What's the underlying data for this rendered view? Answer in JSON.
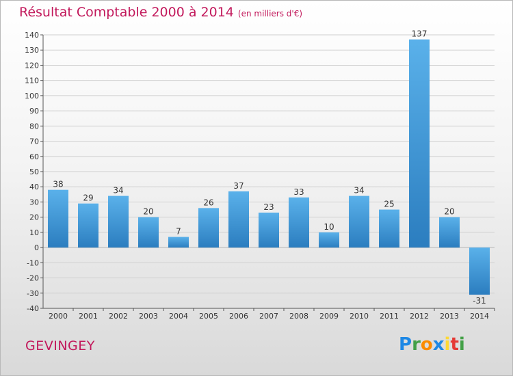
{
  "chart_data": {
    "type": "bar",
    "title": "Résultat Comptable 2000 à 2014",
    "subtitle": "(en milliers d'€)",
    "xlabel": "",
    "ylabel": "",
    "categories": [
      "2000",
      "2001",
      "2002",
      "2003",
      "2004",
      "2005",
      "2006",
      "2007",
      "2008",
      "2009",
      "2010",
      "2011",
      "2012",
      "2013",
      "2014"
    ],
    "values": [
      38,
      29,
      34,
      20,
      7,
      26,
      37,
      23,
      33,
      10,
      34,
      25,
      137,
      20,
      -31
    ],
    "data_labels": [
      "38",
      "29",
      "34",
      "20",
      "7",
      "26",
      "37",
      "23",
      "33",
      "10",
      "34",
      "25",
      "137",
      "20",
      "-31"
    ],
    "ylim": [
      -40,
      140
    ],
    "yticks": [
      140,
      130,
      120,
      110,
      100,
      90,
      80,
      70,
      60,
      50,
      40,
      30,
      20,
      10,
      0,
      -10,
      -20,
      -30,
      -40
    ],
    "grid": true,
    "legend": "none",
    "colors": {
      "bar_light": "#5ab1ea",
      "bar_dark": "#2b7dbf",
      "grid": "#d0d0d0",
      "axis": "#555555"
    }
  },
  "footer": {
    "city": "GEVINGEY",
    "logo_letters": [
      "P",
      "r",
      "o",
      "x",
      "i",
      "t",
      "i"
    ],
    "logo_colors": [
      "#1e88e5",
      "#43a047",
      "#fb8c00",
      "#1e88e5",
      "#fdd835",
      "#e53935",
      "#43a047"
    ]
  }
}
